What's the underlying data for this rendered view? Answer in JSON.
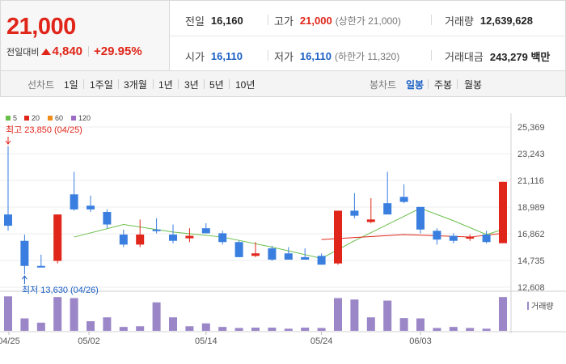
{
  "quote": {
    "price": "21,000",
    "change_label": "전일대비",
    "change": "4,840",
    "change_rate": "+29.95%",
    "prev_close_label": "전일",
    "prev_close": "16,160",
    "high_label": "고가",
    "high": "21,000",
    "upper_limit": "(상한가 21,000)",
    "volume_label": "거래량",
    "volume": "12,639,628",
    "open_label": "시가",
    "open": "16,110",
    "low_label": "저가",
    "low": "16,110",
    "lower_limit": "(하한가 11,320)",
    "value_label": "거래대금",
    "value": "243,279 백만"
  },
  "periods": {
    "line_header": "선차트",
    "line_items": [
      "1일",
      "1주일",
      "3개월",
      "1년",
      "3년",
      "5년",
      "10년"
    ],
    "candle_header": "봉차트",
    "candle_items": [
      "일봉",
      "주봉",
      "월봉"
    ],
    "candle_selected": "일봉"
  },
  "colors": {
    "up": "#e0261a",
    "down": "#3a7fe0",
    "ma5": "#6abf4b",
    "ma20": "#e0261a",
    "ma60": "#f08c1c",
    "ma120": "#9d6bc4",
    "volume": "#9b87c8"
  },
  "chart_data": {
    "type": "candlestick",
    "legend": [
      "5",
      "20",
      "60",
      "120"
    ],
    "y_ticks": [
      "25,369",
      "23,243",
      "21,116",
      "18,989",
      "16,862",
      "14,735",
      "12,608"
    ],
    "ylim": [
      12608,
      25369
    ],
    "x_ticks": [
      "04/25",
      "05/02",
      "05/14",
      "05/24",
      "06/03"
    ],
    "max_annotation": "최고 23,850 (04/25)",
    "min_annotation": "최저 13,630 (04/26)",
    "volume_label": "거래량",
    "candles": [
      {
        "o": 18400,
        "h": 23850,
        "l": 17100,
        "c": 17500
      },
      {
        "o": 16300,
        "h": 16800,
        "l": 13630,
        "c": 14300
      },
      {
        "o": 14300,
        "h": 15200,
        "l": 14200,
        "c": 14200
      },
      {
        "o": 14700,
        "h": 18400,
        "l": 14500,
        "c": 18400
      },
      {
        "o": 20000,
        "h": 21800,
        "l": 18700,
        "c": 18800
      },
      {
        "o": 19100,
        "h": 19900,
        "l": 18600,
        "c": 18800
      },
      {
        "o": 18600,
        "h": 18800,
        "l": 17300,
        "c": 17600
      },
      {
        "o": 16800,
        "h": 17200,
        "l": 15800,
        "c": 16000
      },
      {
        "o": 16000,
        "h": 18000,
        "l": 15800,
        "c": 16800
      },
      {
        "o": 17200,
        "h": 18100,
        "l": 16900,
        "c": 17100
      },
      {
        "o": 16800,
        "h": 17600,
        "l": 16100,
        "c": 16300
      },
      {
        "o": 16500,
        "h": 17300,
        "l": 16200,
        "c": 16700
      },
      {
        "o": 17300,
        "h": 17700,
        "l": 16900,
        "c": 16900
      },
      {
        "o": 16900,
        "h": 17100,
        "l": 16000,
        "c": 16200
      },
      {
        "o": 16200,
        "h": 16300,
        "l": 15000,
        "c": 15000
      },
      {
        "o": 15100,
        "h": 16200,
        "l": 15000,
        "c": 15300
      },
      {
        "o": 15700,
        "h": 15900,
        "l": 14700,
        "c": 14800
      },
      {
        "o": 15300,
        "h": 15800,
        "l": 14800,
        "c": 14800
      },
      {
        "o": 15000,
        "h": 15700,
        "l": 14800,
        "c": 14800
      },
      {
        "o": 15100,
        "h": 15300,
        "l": 14400,
        "c": 14400
      },
      {
        "o": 14500,
        "h": 18700,
        "l": 14400,
        "c": 18700
      },
      {
        "o": 18700,
        "h": 20100,
        "l": 18100,
        "c": 18300
      },
      {
        "o": 17800,
        "h": 19700,
        "l": 17700,
        "c": 18000
      },
      {
        "o": 19300,
        "h": 21800,
        "l": 18400,
        "c": 18400
      },
      {
        "o": 19800,
        "h": 20800,
        "l": 19300,
        "c": 19400
      },
      {
        "o": 19000,
        "h": 19000,
        "l": 16900,
        "c": 17200
      },
      {
        "o": 17100,
        "h": 17300,
        "l": 16000,
        "c": 16400
      },
      {
        "o": 16700,
        "h": 16900,
        "l": 16100,
        "c": 16300
      },
      {
        "o": 16500,
        "h": 16800,
        "l": 16300,
        "c": 16600
      },
      {
        "o": 16800,
        "h": 17100,
        "l": 16100,
        "c": 16200
      },
      {
        "o": 16110,
        "h": 21000,
        "l": 16110,
        "c": 21000
      }
    ],
    "ma5": [
      [
        4,
        16600
      ],
      [
        7,
        17600
      ],
      [
        10,
        17000
      ],
      [
        13,
        16600
      ],
      [
        16,
        15800
      ],
      [
        19,
        14900
      ],
      [
        21,
        16300
      ],
      [
        23,
        17600
      ],
      [
        25,
        18900
      ],
      [
        27,
        17900
      ],
      [
        29,
        16800
      ],
      [
        30,
        17200
      ]
    ],
    "ma20": [
      [
        19,
        16400
      ],
      [
        24,
        16800
      ],
      [
        28,
        16600
      ],
      [
        30,
        16900
      ]
    ],
    "volume": [
      0.97,
      0.35,
      0.23,
      0.95,
      0.92,
      0.27,
      0.38,
      0.11,
      0.13,
      0.8,
      0.38,
      0.13,
      0.21,
      0.11,
      0.08,
      0.09,
      0.09,
      0.06,
      0.09,
      0.08,
      0.92,
      0.88,
      0.38,
      0.85,
      0.36,
      0.35,
      0.08,
      0.11,
      0.08,
      0.06,
      0.95
    ]
  }
}
